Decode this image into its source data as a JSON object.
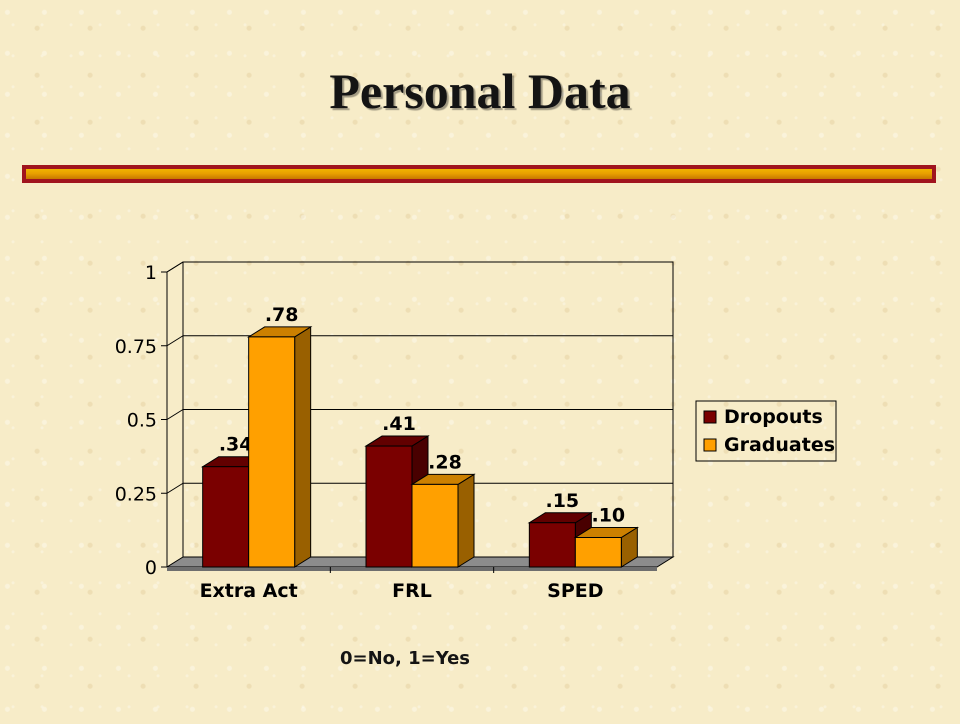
{
  "slide": {
    "title": "Personal Data",
    "footnote": "0=No, 1=Yes"
  },
  "colors": {
    "dropouts": "#7a0000",
    "graduates": "#ffa000",
    "rule_border": "#a0141e",
    "rule_fill": "#e8a000"
  },
  "chart_data": {
    "type": "bar",
    "title": "",
    "xlabel": "",
    "ylabel": "",
    "categories": [
      "Extra Act",
      "FRL",
      "SPED"
    ],
    "series": [
      {
        "name": "Dropouts",
        "values": [
          0.34,
          0.41,
          0.15
        ],
        "labels": [
          ".34",
          ".41",
          ".15"
        ],
        "color": "#7a0000"
      },
      {
        "name": "Graduates",
        "values": [
          0.78,
          0.28,
          0.1
        ],
        "labels": [
          ".78",
          ".28",
          ".10"
        ],
        "color": "#ffa000"
      }
    ],
    "ylim": [
      0,
      1
    ],
    "yticks": [
      0,
      0.25,
      0.5,
      0.75,
      1
    ],
    "ytick_labels": [
      "0",
      "0.25",
      "0.5",
      "0.75",
      "1"
    ],
    "grid": true,
    "legend": "right",
    "style": "3d-clustered-column"
  }
}
